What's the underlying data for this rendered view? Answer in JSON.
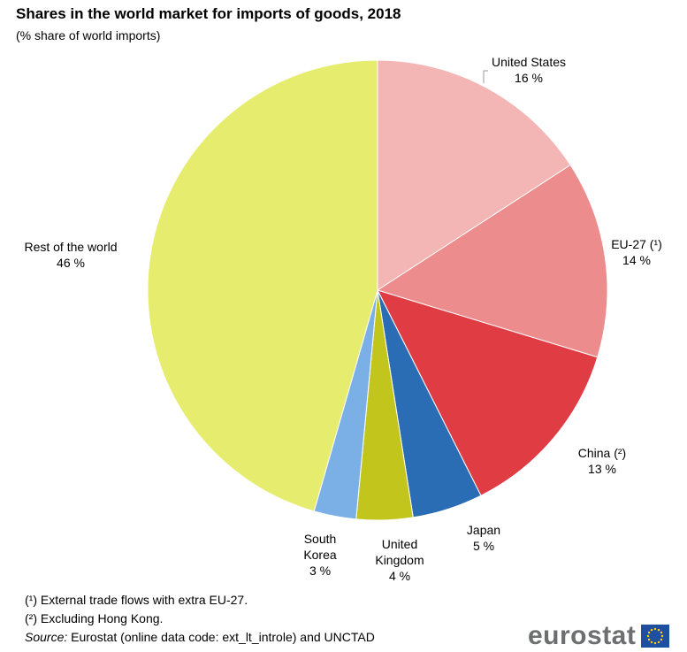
{
  "header": {
    "title": "Shares in the world market for imports of goods, 2018",
    "subtitle": "(% share of world imports)"
  },
  "footnotes": [
    "(¹) External trade flows with extra EU-27.",
    "(²) Excluding Hong Kong."
  ],
  "source": {
    "prefix": "Source:",
    "text": " Eurostat (online data code: ext_lt_introle) and UNCTAD"
  },
  "logo": {
    "text": "eurostat",
    "icon": "eu-flag-icon"
  },
  "colors": {
    "us": "#f4b5b5",
    "eu27": "#ed8c8c",
    "china": "#e03c44",
    "japan": "#2a6db5",
    "uk": "#c2c61c",
    "south_korea": "#7ab0e6",
    "rest": "#e6ec6d"
  },
  "chart_data": {
    "type": "pie",
    "title": "Shares in the world market for imports of goods, 2018",
    "subtitle": "(% share of world imports)",
    "unit": "%",
    "slices": [
      {
        "label": "United States",
        "value": 16,
        "display": "16 %",
        "color": "#f4b5b5"
      },
      {
        "label": "EU-27 (¹)",
        "value": 14,
        "display": "14 %",
        "color": "#ed8c8c"
      },
      {
        "label": "China (²)",
        "value": 13,
        "display": "13 %",
        "color": "#e03c44"
      },
      {
        "label": "Japan",
        "value": 5,
        "display": "5 %",
        "color": "#2a6db5"
      },
      {
        "label": "United Kingdom",
        "value": 4,
        "display": "4 %",
        "color": "#c2c61c"
      },
      {
        "label": "South Korea",
        "value": 3,
        "display": "3 %",
        "color": "#7ab0e6"
      },
      {
        "label": "Rest of the world",
        "value": 46,
        "display": "46 %",
        "color": "#e6ec6d"
      }
    ]
  }
}
